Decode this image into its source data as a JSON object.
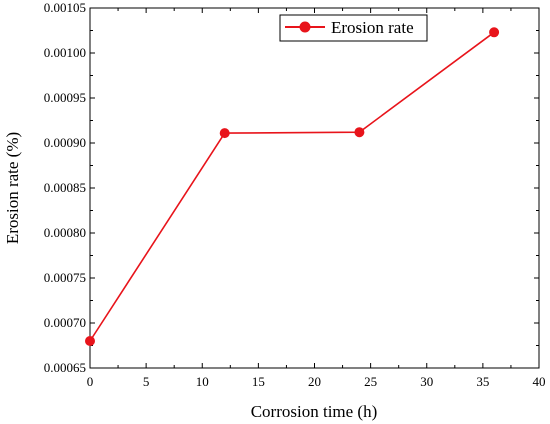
{
  "chart_data": {
    "type": "line",
    "title": "",
    "xlabel": "Corrosion time (h)",
    "ylabel": "Erosion rate (%)",
    "xlim": [
      0,
      40
    ],
    "ylim": [
      0.00065,
      0.00105
    ],
    "x_ticks": [
      "0",
      "5",
      "10",
      "15",
      "20",
      "25",
      "30",
      "35",
      "40"
    ],
    "y_ticks": [
      "0.00065",
      "0.00070",
      "0.00075",
      "0.00080",
      "0.00085",
      "0.00090",
      "0.00095",
      "0.00100",
      "0.00105"
    ],
    "grid": false,
    "legend_position": "top-center",
    "series": [
      {
        "name": "Erosion rate",
        "color": "#e8141b",
        "marker": "circle",
        "x": [
          0,
          12,
          24,
          36
        ],
        "y": [
          0.00068,
          0.000911,
          0.000912,
          0.001023
        ]
      }
    ]
  }
}
